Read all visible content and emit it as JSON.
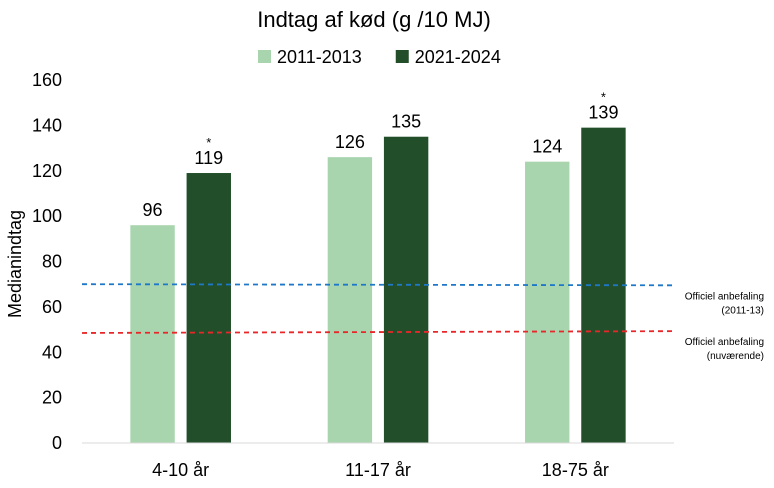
{
  "chart_data": {
    "type": "bar",
    "title": "Indtag af kød (g /10 MJ)",
    "ylabel": "Medianindtag",
    "xlabel": "",
    "ylim": [
      0,
      160
    ],
    "yticks": [
      0,
      20,
      40,
      60,
      80,
      100,
      120,
      140,
      160
    ],
    "categories": [
      "4-10 år",
      "11-17 år",
      "18-75 år"
    ],
    "series": [
      {
        "name": "2011-2013",
        "values": [
          96,
          126,
          124
        ],
        "color": "#a9d5ae",
        "markers": [
          "",
          "",
          ""
        ]
      },
      {
        "name": "2021-2024",
        "values": [
          119,
          135,
          139
        ],
        "color": "#224f2a",
        "markers": [
          "*",
          "",
          "*"
        ]
      }
    ],
    "reference_lines": [
      {
        "label_line1": "Officiel anbefaling",
        "label_line2": "(2011-13)",
        "y_start": 70,
        "y_end": 69.5,
        "color": "#1f77c8"
      },
      {
        "label_line1": "Officiel anbefaling",
        "label_line2": "(nuværende)",
        "y_start": 48.5,
        "y_end": 49.3,
        "color": "#e8272a"
      }
    ],
    "legend_position": "top",
    "grid": false
  }
}
